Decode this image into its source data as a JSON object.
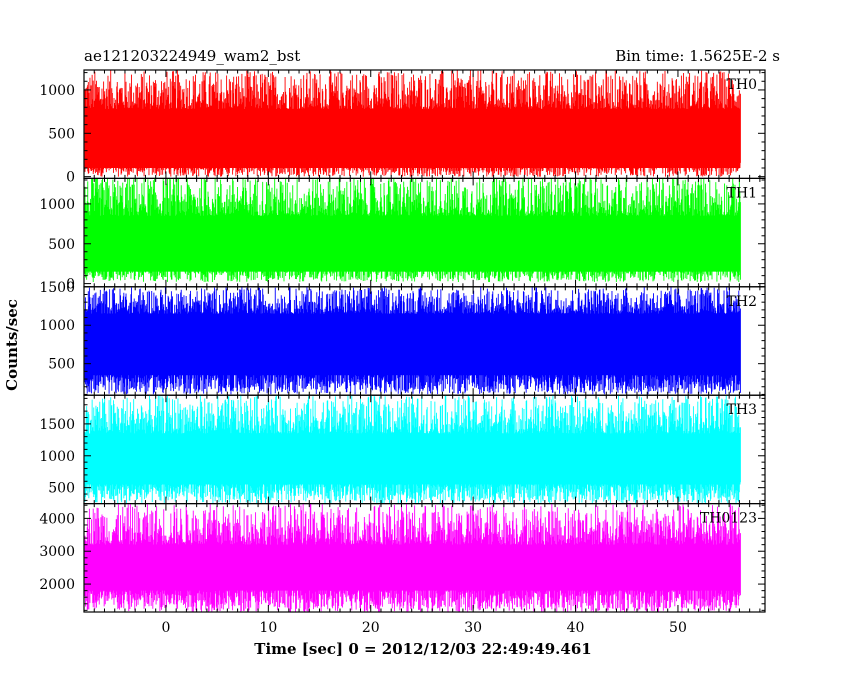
{
  "header": {
    "title": "ae121203224949_wam2_bst",
    "bin_time": "Bin time: 1.5625E-2 s"
  },
  "chart_data": {
    "type": "line",
    "title": "ae121203224949_wam2_bst",
    "xlabel": "Time [sec] 0 = 2012/12/03 22:49:49.461",
    "ylabel": "Counts/sec",
    "xlim": [
      -8.0,
      58.5
    ],
    "x_ticks": [
      0,
      10,
      20,
      30,
      40,
      50
    ],
    "data_x_range": [
      -7.9,
      56.1
    ],
    "grid": false,
    "panels": [
      {
        "name": "TH0",
        "color": "#ff0000",
        "ylim": [
          -20,
          1230
        ],
        "y_ticks": [
          0,
          500,
          1000
        ],
        "fill_band": [
          100,
          780
        ],
        "peak_range": [
          780,
          1230
        ],
        "trough_range": [
          0,
          180
        ],
        "base_level": 520
      },
      {
        "name": "TH1",
        "color": "#00ff00",
        "ylim": [
          -40,
          1320
        ],
        "y_ticks": [
          0,
          500,
          1000
        ],
        "fill_band": [
          150,
          850
        ],
        "peak_range": [
          850,
          1350
        ],
        "trough_range": [
          20,
          250
        ],
        "base_level": 550
      },
      {
        "name": "TH2",
        "color": "#0000ff",
        "ylim": [
          90,
          1500
        ],
        "y_ticks": [
          500,
          1000,
          1500
        ],
        "fill_band": [
          350,
          1150
        ],
        "peak_range": [
          1150,
          1500
        ],
        "trough_range": [
          100,
          400
        ],
        "base_level": 750
      },
      {
        "name": "TH3",
        "color": "#00ffff",
        "ylim": [
          250,
          1950
        ],
        "y_ticks": [
          500,
          1000,
          1500
        ],
        "fill_band": [
          550,
          1350
        ],
        "peak_range": [
          1350,
          1950
        ],
        "trough_range": [
          250,
          600
        ],
        "base_level": 950
      },
      {
        "name": "TH0123",
        "color": "#ff00ff",
        "ylim": [
          1150,
          4450
        ],
        "y_ticks": [
          2000,
          3000,
          4000
        ],
        "fill_band": [
          1800,
          3200
        ],
        "peak_range": [
          3200,
          4450
        ],
        "trough_range": [
          1150,
          1900
        ],
        "base_level": 2600
      }
    ]
  }
}
